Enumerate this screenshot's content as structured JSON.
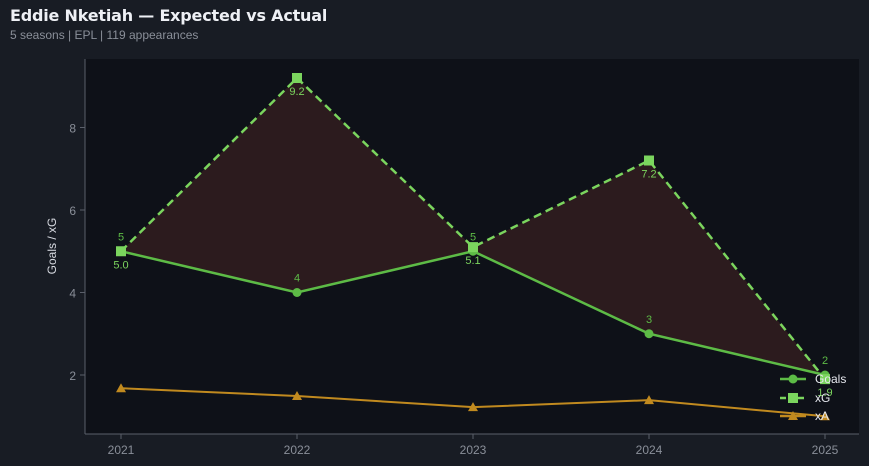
{
  "header": {
    "title": "Eddie Nketiah — Expected vs Actual",
    "subtitle": "5 seasons | EPL | 119 appearances"
  },
  "colors": {
    "background": "#181c24",
    "plot_bg": "#0e1118",
    "goals": "#5dbb46",
    "xg": "#7bd55e",
    "xa": "#c18a1f",
    "fill": "#2e1c1f",
    "axis": "#5a5f6a",
    "tick_text": "#8a8f99"
  },
  "chart_data": {
    "type": "line",
    "title": "Eddie Nketiah — Expected vs Actual",
    "subtitle": "5 seasons | EPL | 119 appearances",
    "xlabel": "",
    "ylabel": "Goals / xG",
    "categories": [
      "2021",
      "2022",
      "2023",
      "2024",
      "2025"
    ],
    "yticks": [
      2,
      4,
      6,
      8
    ],
    "ylim": [
      0.55,
      9.65
    ],
    "grid": false,
    "legend_position": "lower right",
    "series": [
      {
        "name": "Goals",
        "marker": "circle",
        "linestyle": "solid",
        "values": [
          5,
          4,
          5,
          3,
          2
        ],
        "labels": [
          "5",
          "4",
          "5",
          "3",
          "2"
        ]
      },
      {
        "name": "xG",
        "marker": "square",
        "linestyle": "dashed",
        "values": [
          5.0,
          9.2,
          5.1,
          7.2,
          1.9
        ],
        "labels": [
          "5.0",
          "9.2",
          "5.1",
          "7.2",
          "1.9"
        ]
      },
      {
        "name": "xA",
        "marker": "triangle",
        "linestyle": "solid",
        "values": [
          1.68,
          1.49,
          1.22,
          1.39,
          1.0
        ]
      }
    ],
    "annotations": [
      "shaded area between Goals and xG"
    ]
  }
}
